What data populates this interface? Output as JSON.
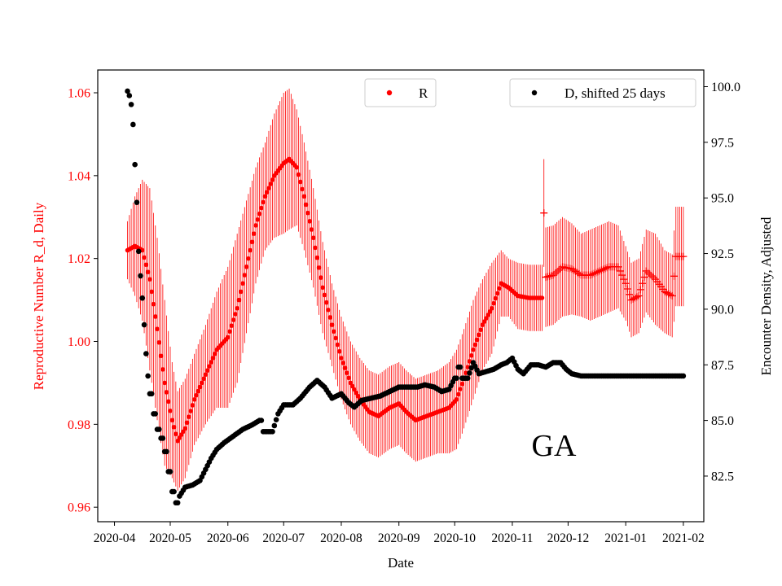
{
  "chart_data": {
    "type": "scatter",
    "annotation": "GA",
    "xlabel": "Date",
    "x_ticks": [
      "2020-04",
      "2020-05",
      "2020-06",
      "2020-07",
      "2020-08",
      "2020-09",
      "2020-10",
      "2020-11",
      "2020-12",
      "2021-01",
      "2021-02"
    ],
    "y_left": {
      "label": "Reproductive Number R_d, Daily",
      "ticks": [
        "0.96",
        "0.98",
        "1.00",
        "1.02",
        "1.04",
        "1.06"
      ],
      "range": [
        0.9565,
        1.0655
      ],
      "color": "#ff0000"
    },
    "y_right": {
      "label": "Encounter Density, Adjusted",
      "ticks": [
        "82.5",
        "85.0",
        "87.5",
        "90.0",
        "92.5",
        "95.0",
        "97.5",
        "100.0"
      ],
      "range": [
        80.45,
        100.75
      ],
      "color": "#000000"
    },
    "x_range": [
      "2020-03-23",
      "2021-02-12"
    ],
    "legends": [
      {
        "label": "R",
        "color": "#ff0000",
        "position": "upper center"
      },
      {
        "label": "D, shifted 25 days",
        "color": "#000000",
        "position": "upper right"
      }
    ],
    "series": [
      {
        "name": "R",
        "axis": "left",
        "color": "#ff0000",
        "marker": "dot-then-plus",
        "error_bars": true,
        "points": [
          [
            "2020-04-08",
            1.022,
            0.007
          ],
          [
            "2020-04-12",
            1.023,
            0.012
          ],
          [
            "2020-04-16",
            1.022,
            0.017
          ],
          [
            "2020-04-20",
            1.015,
            0.022
          ],
          [
            "2020-04-24",
            1.003,
            0.022
          ],
          [
            "2020-04-28",
            0.99,
            0.02
          ],
          [
            "2020-05-02",
            0.981,
            0.014
          ],
          [
            "2020-05-05",
            0.976,
            0.012
          ],
          [
            "2020-05-09",
            0.979,
            0.012
          ],
          [
            "2020-05-14",
            0.986,
            0.011
          ],
          [
            "2020-05-20",
            0.992,
            0.012
          ],
          [
            "2020-05-26",
            0.998,
            0.014
          ],
          [
            "2020-06-01",
            1.001,
            0.017
          ],
          [
            "2020-06-06",
            1.008,
            0.018
          ],
          [
            "2020-06-11",
            1.018,
            0.016
          ],
          [
            "2020-06-16",
            1.028,
            0.014
          ],
          [
            "2020-06-21",
            1.035,
            0.013
          ],
          [
            "2020-06-26",
            1.04,
            0.015
          ],
          [
            "2020-07-01",
            1.043,
            0.017
          ],
          [
            "2020-07-04",
            1.044,
            0.017
          ],
          [
            "2020-07-08",
            1.042,
            0.014
          ],
          [
            "2020-07-12",
            1.035,
            0.013
          ],
          [
            "2020-07-17",
            1.025,
            0.012
          ],
          [
            "2020-07-22",
            1.013,
            0.011
          ],
          [
            "2020-07-27",
            1.004,
            0.01
          ],
          [
            "2020-08-01",
            0.996,
            0.01
          ],
          [
            "2020-08-06",
            0.99,
            0.01
          ],
          [
            "2020-08-11",
            0.986,
            0.01
          ],
          [
            "2020-08-16",
            0.983,
            0.01
          ],
          [
            "2020-08-21",
            0.982,
            0.01
          ],
          [
            "2020-08-27",
            0.984,
            0.01
          ],
          [
            "2020-09-01",
            0.985,
            0.01
          ],
          [
            "2020-09-05",
            0.983,
            0.01
          ],
          [
            "2020-09-10",
            0.981,
            0.01
          ],
          [
            "2020-09-16",
            0.982,
            0.01
          ],
          [
            "2020-09-22",
            0.983,
            0.01
          ],
          [
            "2020-09-28",
            0.984,
            0.011
          ],
          [
            "2020-10-02",
            0.986,
            0.012
          ],
          [
            "2020-10-06",
            0.991,
            0.012
          ],
          [
            "2020-10-11",
            0.998,
            0.012
          ],
          [
            "2020-10-16",
            1.004,
            0.011
          ],
          [
            "2020-10-21",
            1.008,
            0.011
          ],
          [
            "2020-10-26",
            1.014,
            0.008
          ],
          [
            "2020-10-30",
            1.013,
            0.007
          ],
          [
            "2020-11-04",
            1.011,
            0.008
          ],
          [
            "2020-11-10",
            1.0105,
            0.008
          ],
          [
            "2020-11-16",
            1.0105,
            0.008
          ],
          [
            "2020-11-18",
            1.031,
            0.013
          ],
          [
            "2020-11-19",
            1.0155,
            0.012
          ],
          [
            "2020-11-23",
            1.016,
            0.012
          ],
          [
            "2020-11-28",
            1.018,
            0.012
          ],
          [
            "2020-12-03",
            1.0175,
            0.011
          ],
          [
            "2020-12-08",
            1.016,
            0.01
          ],
          [
            "2020-12-13",
            1.016,
            0.011
          ],
          [
            "2020-12-18",
            1.017,
            0.011
          ],
          [
            "2020-12-23",
            1.018,
            0.011
          ],
          [
            "2020-12-28",
            1.018,
            0.01
          ],
          [
            "2021-01-01",
            1.014,
            0.009
          ],
          [
            "2021-01-04",
            1.01,
            0.009
          ],
          [
            "2021-01-08",
            1.011,
            0.009
          ],
          [
            "2021-01-12",
            1.017,
            0.01
          ],
          [
            "2021-01-17",
            1.015,
            0.011
          ],
          [
            "2021-01-22",
            1.012,
            0.01
          ],
          [
            "2021-01-26",
            1.011,
            0.01
          ],
          [
            "2021-01-28",
            1.0205,
            0.012
          ],
          [
            "2021-02-01",
            1.0205,
            0.012
          ]
        ]
      },
      {
        "name": "D, shifted 25 days",
        "axis": "right",
        "color": "#000000",
        "marker": "dot",
        "points": [
          [
            "2020-04-08",
            99.8
          ],
          [
            "2020-04-09",
            99.6
          ],
          [
            "2020-04-10",
            99.2
          ],
          [
            "2020-04-11",
            98.3
          ],
          [
            "2020-04-12",
            96.5
          ],
          [
            "2020-04-13",
            94.8
          ],
          [
            "2020-04-14",
            92.6
          ],
          [
            "2020-04-15",
            91.5
          ],
          [
            "2020-04-16",
            90.5
          ],
          [
            "2020-04-17",
            89.3
          ],
          [
            "2020-04-18",
            88.0
          ],
          [
            "2020-04-19",
            87.0
          ],
          [
            "2020-04-20",
            86.2
          ],
          [
            "2020-04-22",
            85.3
          ],
          [
            "2020-04-24",
            84.6
          ],
          [
            "2020-04-26",
            84.2
          ],
          [
            "2020-04-28",
            83.6
          ],
          [
            "2020-04-30",
            82.7
          ],
          [
            "2020-05-02",
            81.8
          ],
          [
            "2020-05-04",
            81.3
          ],
          [
            "2020-05-06",
            81.6
          ],
          [
            "2020-05-09",
            82.0
          ],
          [
            "2020-05-13",
            82.1
          ],
          [
            "2020-05-17",
            82.3
          ],
          [
            "2020-05-20",
            82.8
          ],
          [
            "2020-05-23",
            83.3
          ],
          [
            "2020-05-26",
            83.7
          ],
          [
            "2020-05-30",
            84.0
          ],
          [
            "2020-06-04",
            84.3
          ],
          [
            "2020-06-09",
            84.6
          ],
          [
            "2020-06-14",
            84.8
          ],
          [
            "2020-06-18",
            85.0
          ],
          [
            "2020-06-20",
            84.5
          ],
          [
            "2020-06-25",
            84.5
          ],
          [
            "2020-06-28",
            85.3
          ],
          [
            "2020-07-01",
            85.7
          ],
          [
            "2020-07-06",
            85.7
          ],
          [
            "2020-07-10",
            86.0
          ],
          [
            "2020-07-15",
            86.5
          ],
          [
            "2020-07-19",
            86.8
          ],
          [
            "2020-07-23",
            86.5
          ],
          [
            "2020-07-27",
            86.0
          ],
          [
            "2020-08-01",
            86.2
          ],
          [
            "2020-08-05",
            85.8
          ],
          [
            "2020-08-08",
            85.6
          ],
          [
            "2020-08-12",
            85.9
          ],
          [
            "2020-08-17",
            86.0
          ],
          [
            "2020-08-22",
            86.1
          ],
          [
            "2020-08-27",
            86.3
          ],
          [
            "2020-09-01",
            86.5
          ],
          [
            "2020-09-06",
            86.5
          ],
          [
            "2020-09-11",
            86.5
          ],
          [
            "2020-09-15",
            86.6
          ],
          [
            "2020-09-20",
            86.5
          ],
          [
            "2020-09-24",
            86.3
          ],
          [
            "2020-09-28",
            86.4
          ],
          [
            "2020-10-01",
            86.9
          ],
          [
            "2020-10-03",
            87.4
          ],
          [
            "2020-10-05",
            86.9
          ],
          [
            "2020-10-08",
            86.9
          ],
          [
            "2020-10-11",
            87.6
          ],
          [
            "2020-10-14",
            87.1
          ],
          [
            "2020-10-18",
            87.2
          ],
          [
            "2020-10-22",
            87.3
          ],
          [
            "2020-10-26",
            87.5
          ],
          [
            "2020-10-29",
            87.6
          ],
          [
            "2020-11-01",
            87.8
          ],
          [
            "2020-11-04",
            87.3
          ],
          [
            "2020-11-07",
            87.1
          ],
          [
            "2020-11-11",
            87.5
          ],
          [
            "2020-11-15",
            87.5
          ],
          [
            "2020-11-19",
            87.4
          ],
          [
            "2020-11-23",
            87.6
          ],
          [
            "2020-11-27",
            87.6
          ],
          [
            "2020-11-30",
            87.3
          ],
          [
            "2020-12-03",
            87.1
          ],
          [
            "2020-12-08",
            87.0
          ],
          [
            "2020-12-15",
            87.0
          ],
          [
            "2020-12-22",
            87.0
          ],
          [
            "2020-12-29",
            87.0
          ],
          [
            "2021-01-05",
            87.0
          ],
          [
            "2021-01-12",
            87.0
          ],
          [
            "2021-01-19",
            87.0
          ],
          [
            "2021-01-26",
            87.0
          ],
          [
            "2021-02-01",
            87.0
          ]
        ]
      }
    ]
  }
}
